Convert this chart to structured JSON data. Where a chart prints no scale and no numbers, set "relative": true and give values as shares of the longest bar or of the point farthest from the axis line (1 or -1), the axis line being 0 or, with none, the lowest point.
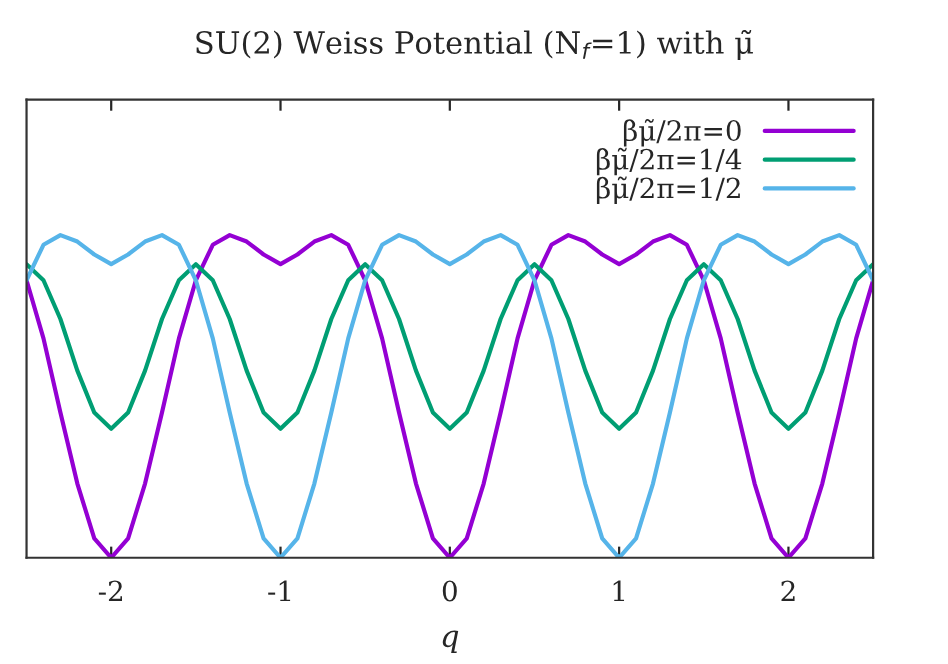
{
  "chart_data": {
    "type": "line",
    "title": "SU(2) Weiss Potential (N$_{f}$=1) with μ̃",
    "xlabel": "q",
    "relative": true,
    "x": [
      -2.5,
      -2.4,
      -2.3,
      -2.2,
      -2.1,
      -2.0,
      -1.9,
      -1.8,
      -1.7,
      -1.6,
      -1.5,
      -1.4,
      -1.3,
      -1.2,
      -1.1,
      -1.0,
      -0.9,
      -0.8,
      -0.7,
      -0.6,
      -0.5,
      -0.4,
      -0.3,
      -0.2,
      -0.1,
      0.0,
      0.1,
      0.2,
      0.3,
      0.4,
      0.5,
      0.6,
      0.7,
      0.8,
      0.9,
      1.0,
      1.1,
      1.2,
      1.3,
      1.4,
      1.5,
      1.6,
      1.7,
      1.8,
      1.9,
      2.0,
      2.1,
      2.2,
      2.3,
      2.4,
      2.5
    ],
    "xlim": [
      -2.5,
      2.5
    ],
    "xticks": [
      -2,
      -1,
      0,
      1,
      2
    ],
    "legend": "top right",
    "grid": false,
    "line_style": "solid",
    "marker": "none",
    "series": [
      {
        "name": "βμ̃/2π=0",
        "color": "#9400d3",
        "values": [
          0.86,
          0.68,
          0.45,
          0.23,
          0.06,
          0,
          0.06,
          0.23,
          0.45,
          0.68,
          0.86,
          0.97,
          1,
          0.98,
          0.94,
          0.91,
          0.94,
          0.98,
          1,
          0.97,
          0.86,
          0.68,
          0.45,
          0.23,
          0.06,
          0,
          0.06,
          0.23,
          0.45,
          0.68,
          0.86,
          0.97,
          1,
          0.98,
          0.94,
          0.91,
          0.94,
          0.98,
          1,
          0.97,
          0.86,
          0.68,
          0.45,
          0.23,
          0.06,
          0,
          0.06,
          0.23,
          0.45,
          0.68,
          0.86
        ]
      },
      {
        "name": "βμ̃/2π=1/4",
        "color": "#009e73",
        "values": [
          0.91,
          0.86,
          0.74,
          0.58,
          0.45,
          0.4,
          0.45,
          0.58,
          0.74,
          0.86,
          0.91,
          0.86,
          0.74,
          0.58,
          0.45,
          0.4,
          0.45,
          0.58,
          0.74,
          0.86,
          0.91,
          0.86,
          0.74,
          0.58,
          0.45,
          0.4,
          0.45,
          0.58,
          0.74,
          0.86,
          0.91,
          0.86,
          0.74,
          0.58,
          0.45,
          0.4,
          0.45,
          0.58,
          0.74,
          0.86,
          0.91,
          0.86,
          0.74,
          0.58,
          0.45,
          0.4,
          0.45,
          0.58,
          0.74,
          0.86,
          0.91
        ]
      },
      {
        "name": "βμ̃/2π=1/2",
        "color": "#56b4e9",
        "values": [
          0.86,
          0.97,
          1,
          0.98,
          0.94,
          0.91,
          0.94,
          0.98,
          1,
          0.97,
          0.86,
          0.68,
          0.45,
          0.23,
          0.06,
          0,
          0.06,
          0.23,
          0.45,
          0.68,
          0.86,
          0.97,
          1,
          0.98,
          0.94,
          0.91,
          0.94,
          0.98,
          1,
          0.97,
          0.86,
          0.68,
          0.45,
          0.23,
          0.06,
          0,
          0.06,
          0.23,
          0.45,
          0.68,
          0.86,
          0.97,
          1,
          0.98,
          0.94,
          0.91,
          0.94,
          0.98,
          1,
          0.97,
          0.86
        ]
      }
    ]
  }
}
